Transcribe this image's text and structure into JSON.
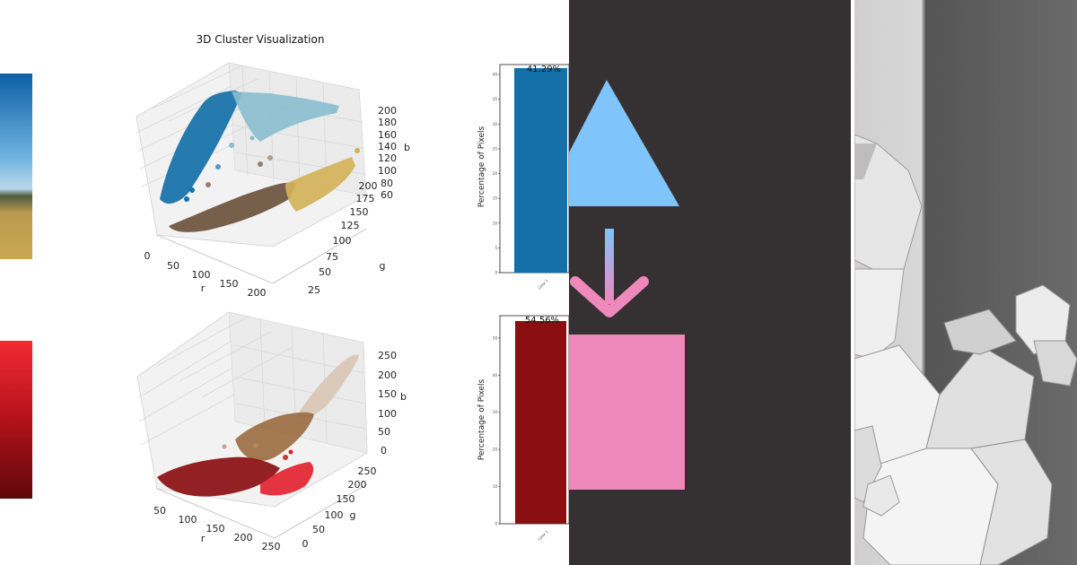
{
  "colors": {
    "teal_blue": "#1470a8",
    "light_teal": "#8abfcf",
    "mustard": "#d2b25a",
    "brown": "#6b523d",
    "beige": "#d9c7b4",
    "tan_brown": "#9b6a3f",
    "dark_red": "#8b0e10",
    "bright_red": "#e21f2c",
    "arrow_blue": "#7fc4fa",
    "arrow_pink": "#ef88bb",
    "dark_bg": "#353031"
  },
  "chart_data": [
    {
      "type": "scatter",
      "subtype": "3d-scatter",
      "title": "3D Cluster Visualization",
      "xlabel": "r",
      "ylabel": "g",
      "zlabel": "b",
      "x_ticks": [
        "0",
        "50",
        "100",
        "150",
        "200"
      ],
      "y_ticks": [
        "25",
        "50",
        "75",
        "100",
        "125",
        "150",
        "175",
        "200"
      ],
      "z_ticks": [
        "60",
        "80",
        "100",
        "120",
        "140",
        "160",
        "180",
        "200"
      ],
      "clusters": [
        "teal-blue",
        "light-teal",
        "brown",
        "mustard"
      ]
    },
    {
      "type": "bar",
      "categories": [
        "Color 1"
      ],
      "values": [
        41.29
      ],
      "data_labels": [
        "41.29%"
      ],
      "ylabel": "Percentage of Pixels",
      "y_ticks": [
        "0",
        "5",
        "10",
        "15",
        "20",
        "25",
        "30",
        "35",
        "40"
      ],
      "ylim": [
        0,
        42
      ]
    },
    {
      "type": "scatter",
      "subtype": "3d-scatter",
      "title": "",
      "xlabel": "r",
      "ylabel": "g",
      "zlabel": "b",
      "x_ticks": [
        "50",
        "100",
        "150",
        "200",
        "250"
      ],
      "y_ticks": [
        "0",
        "50",
        "100",
        "150",
        "200",
        "250"
      ],
      "z_ticks": [
        "0",
        "50",
        "100",
        "150",
        "200",
        "250"
      ],
      "clusters": [
        "beige",
        "tan-brown",
        "dark-red",
        "bright-red"
      ]
    },
    {
      "type": "bar",
      "categories": [
        "Color 1"
      ],
      "values": [
        54.56
      ],
      "data_labels": [
        "54.56%"
      ],
      "ylabel": "Percentage of Pixels",
      "y_ticks": [
        "0",
        "10",
        "20",
        "30",
        "40",
        "50"
      ],
      "ylim": [
        0,
        56
      ]
    }
  ]
}
